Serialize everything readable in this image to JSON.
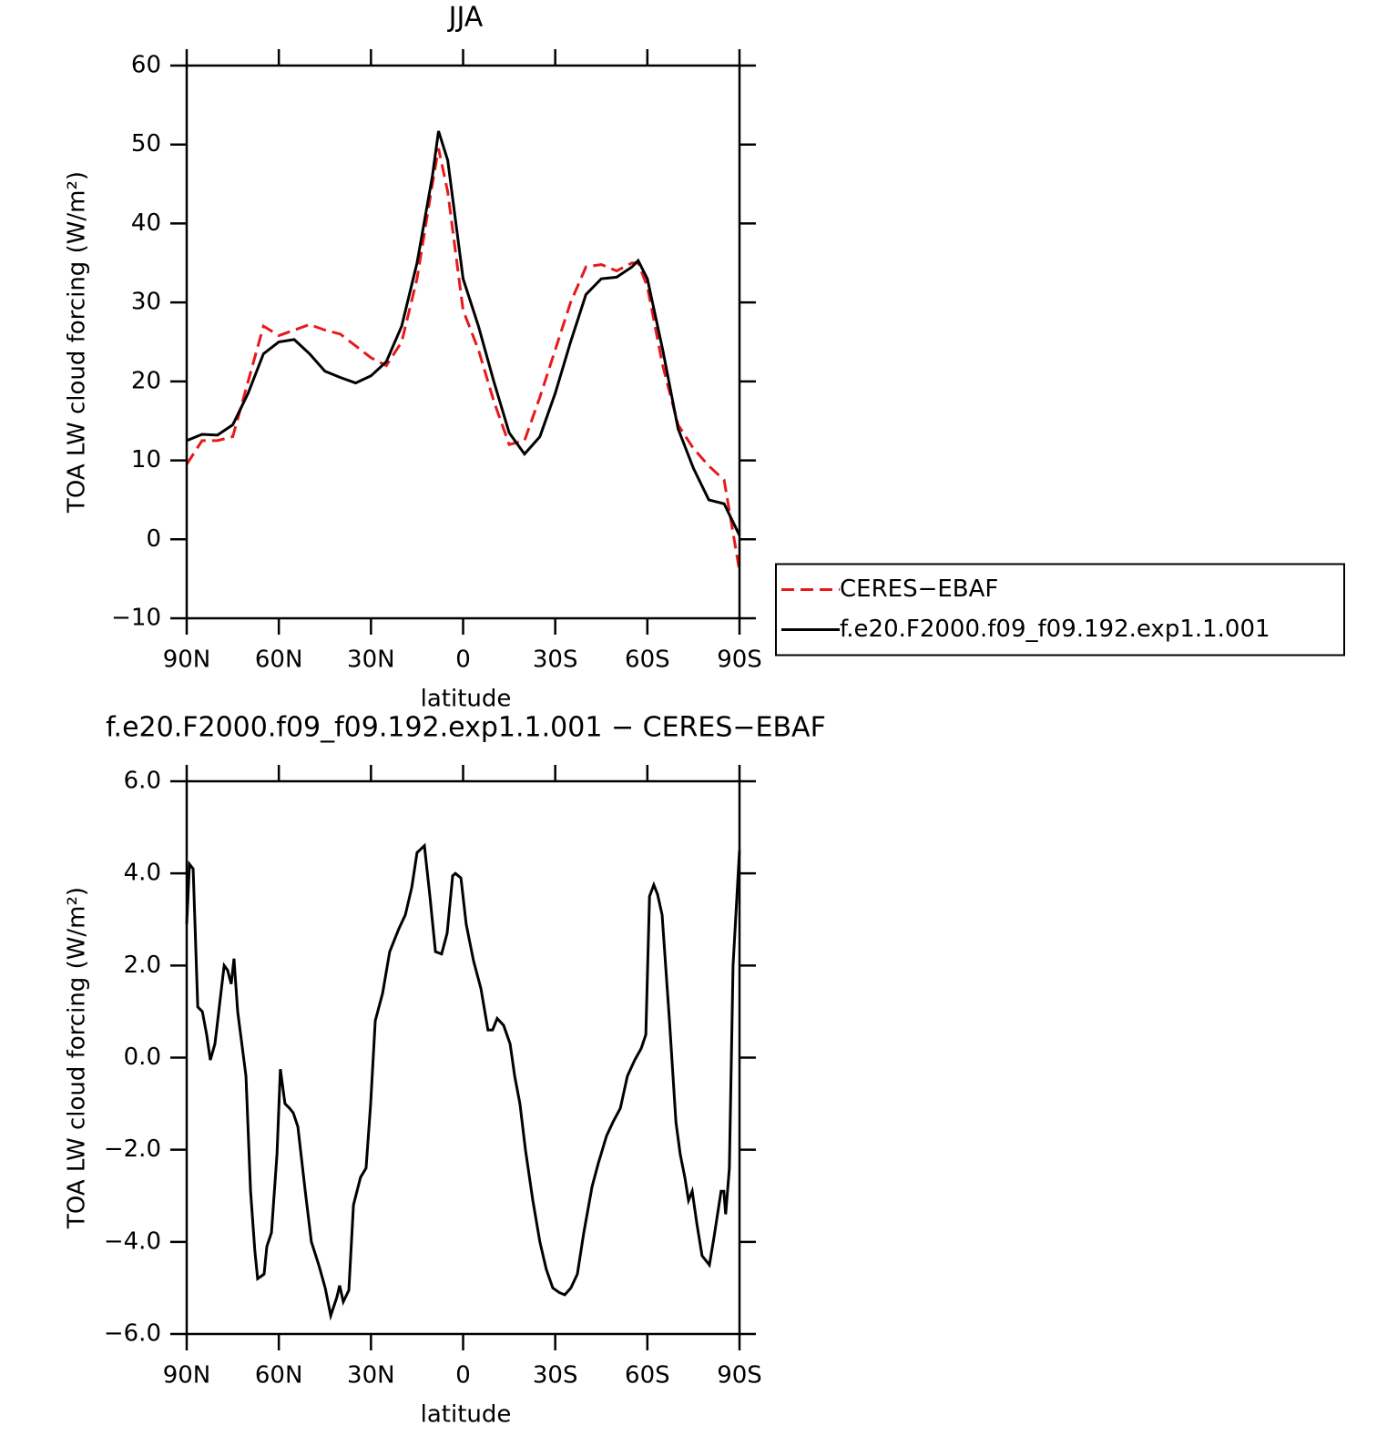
{
  "chart_data": [
    {
      "type": "line",
      "title": "JJA",
      "x_label": "latitude",
      "y_label": "TOA LW cloud forcing (W/m²)",
      "x": [
        90,
        85,
        80,
        75,
        70,
        65,
        60,
        55,
        50,
        45,
        40,
        35,
        30,
        25,
        20,
        15,
        10,
        8,
        5,
        0,
        -5,
        -10,
        -15,
        -20,
        -25,
        -30,
        -35,
        -40,
        -45,
        -50,
        -55,
        -57,
        -60,
        -65,
        -70,
        -75,
        -80,
        -85,
        -90
      ],
      "series": [
        {
          "name": "CERES−EBAF",
          "color": "#e8191a",
          "dashed": true,
          "values": [
            9.5,
            12.5,
            12.5,
            13,
            20,
            27,
            25.8,
            26.5,
            27.2,
            26.5,
            26,
            24.5,
            23,
            22,
            25,
            33,
            45,
            49.5,
            44,
            29,
            24,
            17.5,
            12,
            12.5,
            18,
            24,
            30,
            34.5,
            34.8,
            34,
            35,
            35,
            32,
            22,
            14.5,
            11.5,
            9.3,
            7.5,
            -4
          ]
        },
        {
          "name": "f.e20.F2000.f09_f09.192.exp1.1.001",
          "color": "#000000",
          "dashed": false,
          "values": [
            12.5,
            13.3,
            13.2,
            14.5,
            18.5,
            23.5,
            25,
            25.3,
            23.5,
            21.3,
            20.5,
            19.8,
            20.7,
            22.5,
            27,
            35,
            46,
            51.7,
            48,
            33,
            27,
            20,
            13.5,
            10.8,
            13,
            18.5,
            25,
            31,
            33,
            33.2,
            34.5,
            35.3,
            33,
            24,
            14,
            9,
            5,
            4.5,
            0.5
          ]
        }
      ],
      "xlim": [
        90,
        -90
      ],
      "xticks": [
        {
          "value": 90,
          "label": "90N"
        },
        {
          "value": 60,
          "label": "60N"
        },
        {
          "value": 30,
          "label": "30N"
        },
        0,
        {
          "value": -30,
          "label": "30S"
        },
        {
          "value": -60,
          "label": "60S"
        },
        {
          "value": -90,
          "label": "90S"
        }
      ],
      "ylim": [
        -10,
        60
      ],
      "yticks": [
        {
          "value": -10,
          "label": "−10"
        },
        0,
        10,
        20,
        30,
        40,
        50,
        60
      ],
      "legend": "right"
    },
    {
      "type": "line",
      "title": "f.e20.F2000.f09_f09.192.exp1.1.001 − CERES−EBAF",
      "x_label": "latitude",
      "y_label": "TOA LW cloud forcing (W/m²)",
      "x": [
        90,
        89.1,
        87.9,
        86.4,
        84.9,
        83.5,
        82.3,
        80.8,
        77.8,
        76.7,
        75.5,
        74.6,
        73.4,
        70.7,
        69.2,
        67.8,
        66.9,
        64.8,
        63.9,
        62.4,
        60.6,
        59.5,
        58.0,
        56.5,
        55.3,
        53.8,
        51.4,
        49.4,
        47.0,
        44.9,
        43.1,
        41.1,
        40.2,
        39.0,
        37.2,
        35.7,
        33.4,
        31.6,
        30.1,
        28.6,
        26.2,
        23.9,
        20.9,
        18.8,
        16.7,
        15.0,
        12.6,
        10.8,
        9.0,
        7.0,
        5.2,
        3.4,
        2.5,
        0.7,
        -1.0,
        -3.4,
        -5.8,
        -8.1,
        -9.6,
        -11.1,
        -13.2,
        -15.3,
        -16.8,
        -18.5,
        -20.3,
        -22.7,
        -25.0,
        -27.1,
        -29.2,
        -31.3,
        -33.1,
        -35.1,
        -37.2,
        -39.3,
        -42.0,
        -44.0,
        -46.7,
        -48.8,
        -51.2,
        -53.5,
        -55.9,
        -58.0,
        -59.5,
        -60.7,
        -62.1,
        -63.3,
        -64.8,
        -67.2,
        -69.3,
        -70.7,
        -72.2,
        -73.4,
        -74.6,
        -76.1,
        -77.8,
        -80.2,
        -81.7,
        -84.0,
        -84.9,
        -85.5,
        -86.7,
        -87.9,
        -90
      ],
      "series": [
        {
          "color": "#000000",
          "dashed": false,
          "values": [
            2.9,
            4.2,
            4.1,
            1.1,
            1.0,
            0.5,
            -0.05,
            0.3,
            2.0,
            1.9,
            1.6,
            2.15,
            1.0,
            -0.4,
            -2.9,
            -4.2,
            -4.8,
            -4.7,
            -4.1,
            -3.8,
            -2.1,
            -0.25,
            -1.0,
            -1.1,
            -1.2,
            -1.5,
            -2.9,
            -4.0,
            -4.5,
            -5.0,
            -5.6,
            -5.2,
            -4.95,
            -5.3,
            -5.05,
            -3.2,
            -2.6,
            -2.4,
            -1.0,
            0.8,
            1.4,
            2.3,
            2.8,
            3.1,
            3.7,
            4.45,
            4.6,
            3.5,
            2.3,
            2.25,
            2.7,
            3.95,
            4.0,
            3.9,
            2.9,
            2.1,
            1.5,
            0.6,
            0.6,
            0.85,
            0.7,
            0.3,
            -0.4,
            -1.0,
            -2.0,
            -3.1,
            -4.0,
            -4.6,
            -5.0,
            -5.1,
            -5.15,
            -5.0,
            -4.7,
            -3.8,
            -2.8,
            -2.3,
            -1.7,
            -1.4,
            -1.1,
            -0.4,
            -0.05,
            0.2,
            0.5,
            3.5,
            3.75,
            3.55,
            3.1,
            0.8,
            -1.4,
            -2.1,
            -2.6,
            -3.1,
            -2.9,
            -3.6,
            -4.3,
            -4.5,
            -3.9,
            -2.9,
            -2.9,
            -3.4,
            -2.4,
            2.0,
            4.5
          ]
        }
      ],
      "xlim": [
        90,
        -90
      ],
      "xticks": [
        {
          "value": 90,
          "label": "90N"
        },
        {
          "value": 60,
          "label": "60N"
        },
        {
          "value": 30,
          "label": "30N"
        },
        0,
        {
          "value": -30,
          "label": "30S"
        },
        {
          "value": -60,
          "label": "60S"
        },
        {
          "value": -90,
          "label": "90S"
        }
      ],
      "ylim": [
        -6,
        6
      ],
      "yticks": [
        {
          "value": -6,
          "label": "−6.0"
        },
        {
          "value": -4,
          "label": "−4.0"
        },
        {
          "value": -2,
          "label": "−2.0"
        },
        {
          "value": 0,
          "label": "0.0"
        },
        {
          "value": 2,
          "label": "2.0"
        },
        {
          "value": 4,
          "label": "4.0"
        },
        {
          "value": 6,
          "label": "6.0"
        }
      ]
    }
  ]
}
